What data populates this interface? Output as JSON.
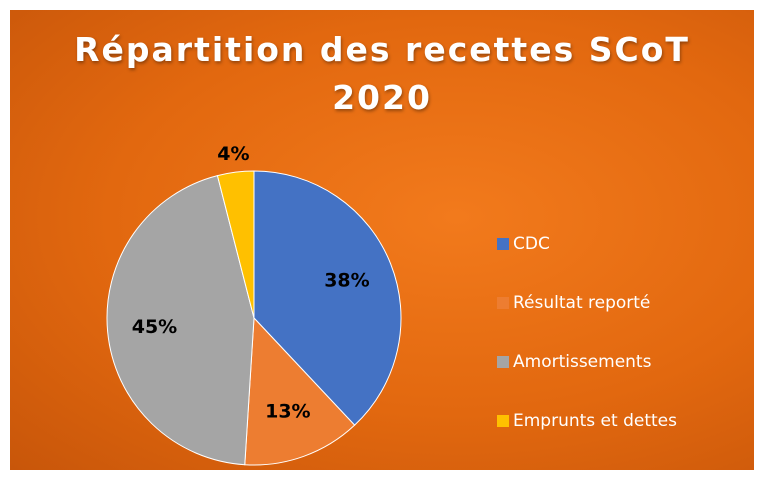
{
  "chart_data": {
    "type": "pie",
    "title": "Répartition des recettes SCoT 2020",
    "categories": [
      "CDC",
      "Résultat reporté",
      "Amortissements",
      "Emprunts et dettes"
    ],
    "values": [
      38,
      13,
      45,
      4
    ],
    "value_labels": [
      "38%",
      "13%",
      "45%",
      "4%"
    ],
    "colors": [
      "#4472c4",
      "#ed7d31",
      "#a5a5a5",
      "#ffc000"
    ],
    "legend": "right"
  }
}
